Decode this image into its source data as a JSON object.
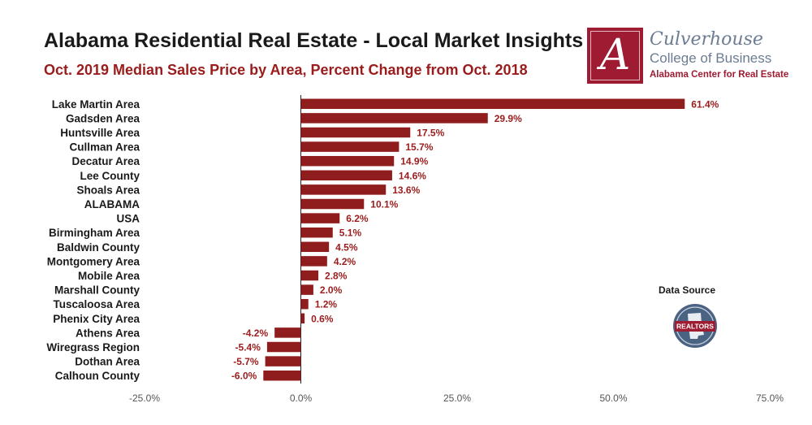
{
  "header": {
    "title": "Alabama Residential Real Estate - Local Market Insights",
    "subtitle": "Oct. 2019 Median Sales Price by Area, Percent Change from Oct. 2018"
  },
  "logo": {
    "letter": "A",
    "line1": "Culverhouse",
    "line2": "College of Business",
    "line3": "Alabama Center for Real Estate"
  },
  "data_source": {
    "label": "Data Source",
    "badge_text": "REALTORS"
  },
  "colors": {
    "bar": "#8f1d1d",
    "label": "#9b1c1c",
    "brand": "#9e1b32",
    "axis": "#555555"
  },
  "chart_data": {
    "type": "bar",
    "orientation": "horizontal",
    "title": "Oct. 2019 Median Sales Price by Area, Percent Change from Oct. 2018",
    "categories": [
      "Lake Martin Area",
      "Gadsden Area",
      "Huntsville Area",
      "Cullman Area",
      "Decatur Area",
      "Lee County",
      "Shoals Area",
      "ALABAMA",
      "USA",
      "Birmingham Area",
      "Baldwin County",
      "Montgomery Area",
      "Mobile Area",
      "Marshall County",
      "Tuscaloosa Area",
      "Phenix City Area",
      "Athens Area",
      "Wiregrass Region",
      "Dothan Area",
      "Calhoun County"
    ],
    "values": [
      61.4,
      29.9,
      17.5,
      15.7,
      14.9,
      14.6,
      13.6,
      10.1,
      6.2,
      5.1,
      4.5,
      4.2,
      2.8,
      2.0,
      1.2,
      0.6,
      -4.2,
      -5.4,
      -5.7,
      -6.0
    ],
    "value_labels": [
      "61.4%",
      "29.9%",
      "17.5%",
      "15.7%",
      "14.9%",
      "14.6%",
      "13.6%",
      "10.1%",
      "6.2%",
      "5.1%",
      "4.5%",
      "4.2%",
      "2.8%",
      "2.0%",
      "1.2%",
      "0.6%",
      "-4.2%",
      "-5.4%",
      "-5.7%",
      "-6.0%"
    ],
    "xlim": [
      -25,
      75
    ],
    "xticks": [
      -25,
      0,
      25,
      50,
      75
    ],
    "xtick_labels": [
      "-25.0%",
      "0.0%",
      "25.0%",
      "50.0%",
      "75.0%"
    ],
    "xlabel": "",
    "ylabel": "",
    "grid": false,
    "legend": "none"
  }
}
